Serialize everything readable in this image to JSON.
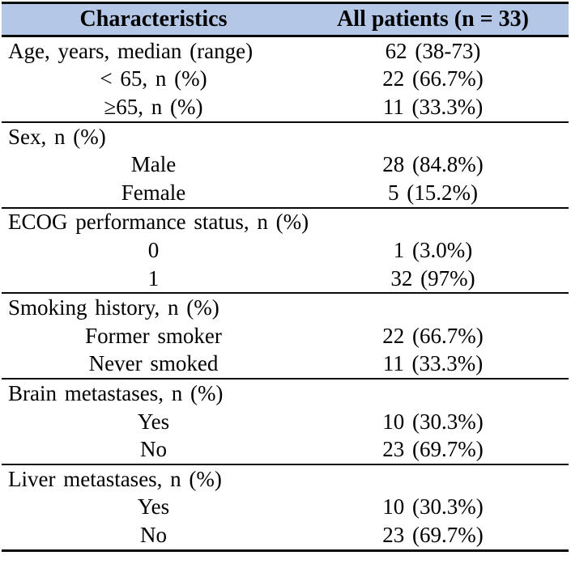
{
  "table": {
    "title_semantic": "patient-baseline-characteristics-table",
    "header": {
      "col1": "Characteristics",
      "col2": "All patients (n = 33)",
      "background_color": "#B4C7E7",
      "text_color": "#000000"
    },
    "rule_color": "#0a0a0a",
    "sections": [
      {
        "rows": [
          {
            "label": "Age, years, median (range)",
            "value": "62 (38-73)",
            "indent": false
          },
          {
            "label": "< 65, n (%)",
            "value": "22 (66.7%)",
            "indent": true
          },
          {
            "label": "≥65, n (%)",
            "value": "11 (33.3%)",
            "indent": true
          }
        ]
      },
      {
        "rows": [
          {
            "label": "Sex, n (%)",
            "value": "",
            "indent": false
          },
          {
            "label": "Male",
            "value": "28 (84.8%)",
            "indent": true
          },
          {
            "label": "Female",
            "value": "5 (15.2%)",
            "indent": true
          }
        ]
      },
      {
        "rows": [
          {
            "label": "ECOG performance status, n (%)",
            "value": "",
            "indent": false
          },
          {
            "label": "0",
            "value": "1 (3.0%)",
            "indent": true
          },
          {
            "label": "1",
            "value": "32 (97%)",
            "indent": true
          }
        ]
      },
      {
        "rows": [
          {
            "label": "Smoking history, n (%)",
            "value": "",
            "indent": false
          },
          {
            "label": "Former smoker",
            "value": "22 (66.7%)",
            "indent": true
          },
          {
            "label": "Never smoked",
            "value": "11 (33.3%)",
            "indent": true
          }
        ]
      },
      {
        "rows": [
          {
            "label": "Brain metastases, n (%)",
            "value": "",
            "indent": false
          },
          {
            "label": "Yes",
            "value": "10 (30.3%)",
            "indent": true
          },
          {
            "label": "No",
            "value": "23 (69.7%)",
            "indent": true
          }
        ]
      },
      {
        "rows": [
          {
            "label": "Liver metastases, n (%)",
            "value": "",
            "indent": false
          },
          {
            "label": "Yes",
            "value": "10 (30.3%)",
            "indent": true
          },
          {
            "label": "No",
            "value": "23 (69.7%)",
            "indent": true
          }
        ]
      }
    ]
  }
}
